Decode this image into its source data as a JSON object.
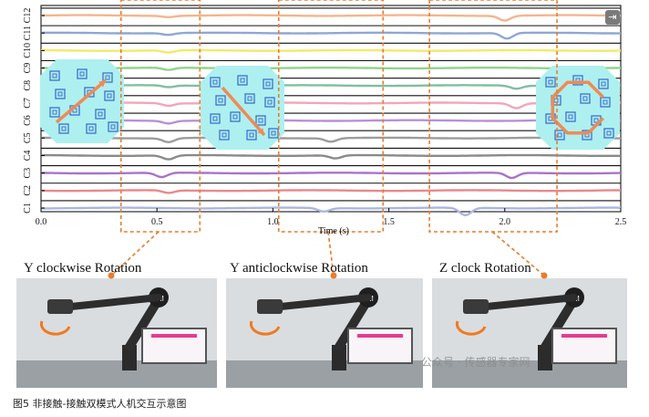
{
  "chart_data": {
    "type": "line",
    "xlabel": "Time (s)",
    "ylabel": "",
    "xlim": [
      0,
      2.5
    ],
    "x_ticks": [
      "0.0",
      "0.5",
      "1.0",
      "1.5",
      "2.0",
      "2.5"
    ],
    "y_tick_labels": [
      "C1",
      "C2",
      "C3",
      "C4",
      "C5",
      "C6",
      "C7",
      "C8",
      "C9",
      "C10",
      "C11",
      "C12"
    ],
    "grid": false,
    "legend": "none",
    "series": [
      {
        "color": "#f3b58e",
        "baseline": 12,
        "dips": [
          {
            "t": 0.55,
            "depth": 0.15
          },
          {
            "t": 2.0,
            "depth": 0.55
          }
        ]
      },
      {
        "color": "#8fa7d4",
        "baseline": 11,
        "dips": [
          {
            "t": 0.55,
            "depth": 0.2
          },
          {
            "t": 2.01,
            "depth": 0.65
          }
        ]
      },
      {
        "color": "#f2ea6a",
        "baseline": 10,
        "dips": [
          {
            "t": 0.55,
            "depth": 0.25
          }
        ]
      },
      {
        "color": "#8fd48a",
        "baseline": 9,
        "dips": [
          {
            "t": 0.55,
            "depth": 0.25
          }
        ]
      },
      {
        "color": "#7fbfa0",
        "baseline": 8,
        "dips": [
          {
            "t": 0.55,
            "depth": 0.2
          },
          {
            "t": 2.05,
            "depth": 0.35
          }
        ]
      },
      {
        "color": "#f2a6b8",
        "baseline": 7,
        "dips": [
          {
            "t": 0.55,
            "depth": 0.3
          },
          {
            "t": 2.05,
            "depth": 0.55
          }
        ]
      },
      {
        "color": "#b890d6",
        "baseline": 6,
        "dips": [
          {
            "t": 0.55,
            "depth": 0.3
          }
        ]
      },
      {
        "color": "#9c9c9c",
        "baseline": 5,
        "dips": [
          {
            "t": 0.55,
            "depth": 0.45
          },
          {
            "t": 1.25,
            "depth": 0.4
          }
        ]
      },
      {
        "color": "#8a8a8a",
        "baseline": 4,
        "dips": [
          {
            "t": 0.55,
            "depth": 0.45
          },
          {
            "t": 1.27,
            "depth": 0.35
          }
        ]
      },
      {
        "color": "#a874c8",
        "baseline": 3,
        "dips": [
          {
            "t": 0.52,
            "depth": 0.5
          },
          {
            "t": 2.03,
            "depth": 0.6
          }
        ]
      },
      {
        "color": "#e8888e",
        "baseline": 2,
        "dips": [
          {
            "t": 0.55,
            "depth": 0.3
          }
        ]
      },
      {
        "color": "#aab6df",
        "baseline": 1,
        "dips": [
          {
            "t": 1.22,
            "depth": 0.4
          },
          {
            "t": 1.83,
            "depth": 0.85
          }
        ]
      }
    ],
    "highlight_windows": [
      [
        0.4,
        0.63
      ],
      [
        1.08,
        1.42
      ],
      [
        1.73,
        2.17
      ]
    ]
  },
  "photos": [
    {
      "label": "Y clockwise Rotation"
    },
    {
      "label": "Y anticlockwise Rotation"
    },
    {
      "label": "Z clock Rotation"
    }
  ],
  "panel_brand": "TM",
  "watermark": "公众号 · 传感器专家网",
  "caption": "图5 非接触-接触双模式人机交互示意图",
  "colors": {
    "highlight_box": "#e87d2c",
    "sensor_panel": "#aef0ef",
    "sensor_pattern": "#3f6fd1",
    "arrow": "#ef8a55"
  }
}
